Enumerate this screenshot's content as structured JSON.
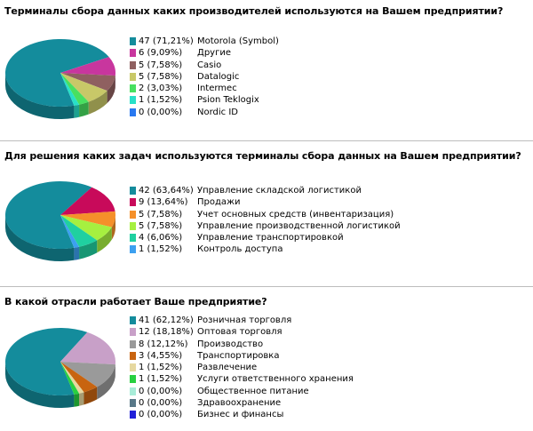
{
  "charts": [
    {
      "question": "Терминалы сбора данных каких производителей используются на Вашем предприятии?",
      "label_left": 222,
      "items": [
        {
          "value": "47 (71,21%)",
          "label": "Motorola (Symbol)",
          "color": "#148c9c"
        },
        {
          "value": "6 (9,09%)",
          "label": "Другие",
          "color": "#c8369e"
        },
        {
          "value": "5 (7,58%)",
          "label": "Casio",
          "color": "#8f6060"
        },
        {
          "value": "5 (7,58%)",
          "label": "Datalogic",
          "color": "#c8c868"
        },
        {
          "value": "2 (3,03%)",
          "label": "Intermec",
          "color": "#48e060"
        },
        {
          "value": "1 (1,52%)",
          "label": "Psion Teklogix",
          "color": "#28e0c8"
        },
        {
          "value": "0 (0,00%)",
          "label": "Nordic ID",
          "color": "#2878f0"
        }
      ]
    },
    {
      "question": "Для решения каких задач используются терминалы сбора данных на Вашем предприятии?",
      "label_left": 222,
      "items": [
        {
          "value": "42 (63,64%)",
          "label": "Управление складской логистикой",
          "color": "#148c9c"
        },
        {
          "value": "9 (13,64%)",
          "label": "Продажи",
          "color": "#c80a5a"
        },
        {
          "value": "5 (7,58%)",
          "label": "Учет основных средств (инвентаризация)",
          "color": "#f5902a"
        },
        {
          "value": "5 (7,58%)",
          "label": "Управление производственной логистикой",
          "color": "#a6f040"
        },
        {
          "value": "4 (6,06%)",
          "label": "Управление транспортировкой",
          "color": "#20d0a0"
        },
        {
          "value": "1 (1,52%)",
          "label": "Контроль доступа",
          "color": "#3ca0f0"
        }
      ]
    },
    {
      "question": "В какой отрасли работает Ваше предприятие?",
      "label_left": 222,
      "items": [
        {
          "value": "41 (62,12%)",
          "label": "Розничная торговля",
          "color": "#148c9c"
        },
        {
          "value": "12 (18,18%)",
          "label": "Оптовая торговля",
          "color": "#c8a0c8"
        },
        {
          "value": "8 (12,12%)",
          "label": "Производство",
          "color": "#9a9a9a"
        },
        {
          "value": "3 (4,55%)",
          "label": "Транспортировка",
          "color": "#c86410"
        },
        {
          "value": "1 (1,52%)",
          "label": "Развлечение",
          "color": "#e6d8a0"
        },
        {
          "value": "1 (1,52%)",
          "label": "Услуги ответственного хранения",
          "color": "#28d040"
        },
        {
          "value": "0 (0,00%)",
          "label": "Общественное питание",
          "color": "#a8ecd8"
        },
        {
          "value": "0 (0,00%)",
          "label": "Здравоохранение",
          "color": "#587888"
        },
        {
          "value": "0 (0,00%)",
          "label": "Бизнес и финансы",
          "color": "#2020d8"
        }
      ]
    }
  ],
  "chart_data": [
    {
      "type": "pie",
      "title": "Терминалы сбора данных каких производителей используются на Вашем предприятии?",
      "categories": [
        "Motorola (Symbol)",
        "Другие",
        "Casio",
        "Datalogic",
        "Intermec",
        "Psion Teklogix",
        "Nordic ID"
      ],
      "values": [
        47,
        6,
        5,
        5,
        2,
        1,
        0
      ],
      "percentages": [
        71.21,
        9.09,
        7.58,
        7.58,
        3.03,
        1.52,
        0.0
      ],
      "colors": [
        "#148c9c",
        "#c8369e",
        "#8f6060",
        "#c8c868",
        "#48e060",
        "#28e0c8",
        "#2878f0"
      ],
      "legend": "right"
    },
    {
      "type": "pie",
      "title": "Для решения каких задач используются терминалы сбора данных на Вашем предприятии?",
      "categories": [
        "Управление складской логистикой",
        "Продажи",
        "Учет основных средств (инвентаризация)",
        "Управление производственной логистикой",
        "Управление транспортировкой",
        "Контроль доступа"
      ],
      "values": [
        42,
        9,
        5,
        5,
        4,
        1
      ],
      "percentages": [
        63.64,
        13.64,
        7.58,
        7.58,
        6.06,
        1.52
      ],
      "colors": [
        "#148c9c",
        "#c80a5a",
        "#f5902a",
        "#a6f040",
        "#20d0a0",
        "#3ca0f0"
      ],
      "legend": "right"
    },
    {
      "type": "pie",
      "title": "В какой отрасли работает Ваше предприятие?",
      "categories": [
        "Розничная торговля",
        "Оптовая торговля",
        "Производство",
        "Транспортировка",
        "Развлечение",
        "Услуги ответственного хранения",
        "Общественное питание",
        "Здравоохранение",
        "Бизнес и финансы"
      ],
      "values": [
        41,
        12,
        8,
        3,
        1,
        1,
        0,
        0,
        0
      ],
      "percentages": [
        62.12,
        18.18,
        12.12,
        4.55,
        1.52,
        1.52,
        0.0,
        0.0,
        0.0
      ],
      "colors": [
        "#148c9c",
        "#c8a0c8",
        "#9a9a9a",
        "#c86410",
        "#e6d8a0",
        "#28d040",
        "#a8ecd8",
        "#587888",
        "#2020d8"
      ],
      "legend": "right"
    }
  ]
}
